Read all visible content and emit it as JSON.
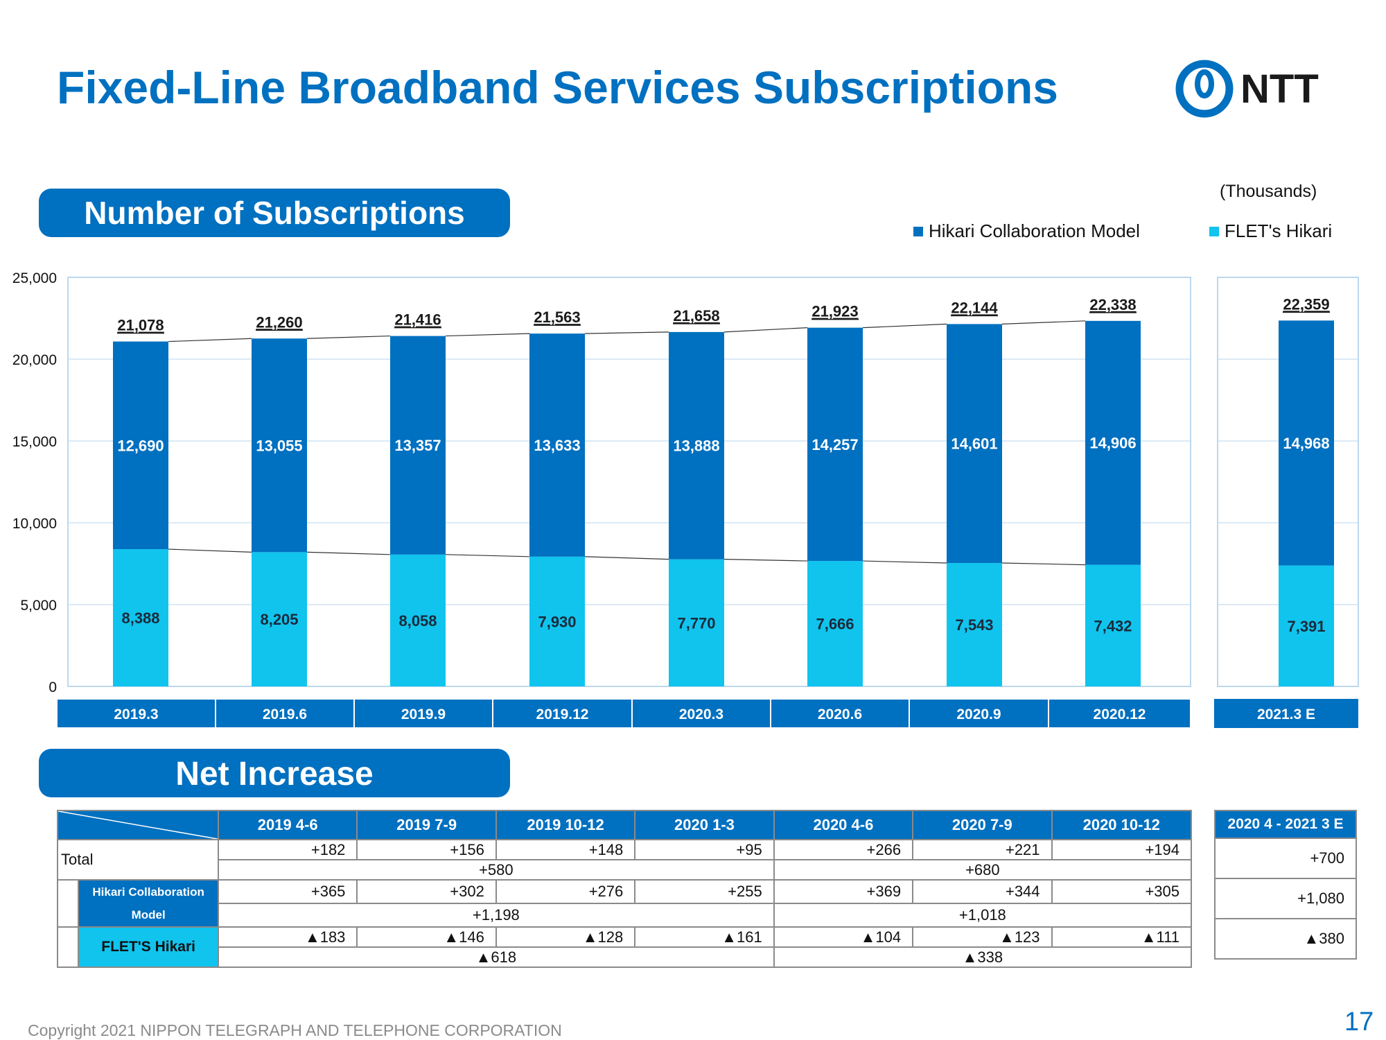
{
  "header": {
    "title": "Fixed-Line Broadband Services Subscriptions",
    "logo_text": "NTT",
    "colors": {
      "brand": "#0070c0",
      "dark_blue": "#0070c0",
      "light_blue": "#10c4ee"
    }
  },
  "section_subscriptions": {
    "title": "Number of Subscriptions",
    "unit": "(Thousands)"
  },
  "legend": {
    "hikari": "Hikari Collaboration Model",
    "flets": "FLET's Hikari"
  },
  "chart_data": {
    "type": "bar",
    "stacked": true,
    "categories": [
      "2019.3",
      "2019.6",
      "2019.9",
      "2019.12",
      "2020.3",
      "2020.6",
      "2020.9",
      "2020.12",
      "2021.3 E"
    ],
    "series": [
      {
        "name": "FLET's Hikari",
        "color": "#10c4ee",
        "values": [
          8388,
          8205,
          8058,
          7930,
          7770,
          7666,
          7543,
          7432,
          7391
        ],
        "labels": [
          "8,388",
          "8,205",
          "8,058",
          "7,930",
          "7,770",
          "7,666",
          "7,543",
          "7,432",
          "7,391"
        ]
      },
      {
        "name": "Hikari Collaboration Model",
        "color": "#0070c0",
        "values": [
          12690,
          13055,
          13357,
          13633,
          13888,
          14257,
          14601,
          14906,
          14968
        ],
        "labels": [
          "12,690",
          "13,055",
          "13,357",
          "13,633",
          "13,888",
          "14,257",
          "14,601",
          "14,906",
          "14,968"
        ]
      }
    ],
    "totals": [
      21078,
      21260,
      21416,
      21563,
      21658,
      21923,
      22144,
      22338,
      22359
    ],
    "total_labels": [
      "21,078",
      "21,260",
      "21,416",
      "21,563",
      "21,658",
      "21,923",
      "22,144",
      "22,338",
      "22,359"
    ],
    "ylim": [
      0,
      25000
    ],
    "yticks": [
      0,
      5000,
      10000,
      15000,
      20000,
      25000
    ],
    "ytick_labels": [
      "0",
      "5,000",
      "10,000",
      "15,000",
      "20,000",
      "25,000"
    ],
    "grid": true,
    "legend_position": "top-right"
  },
  "section_net_increase": {
    "title": "Net Increase",
    "columns": [
      "2019 4-6",
      "2019 7-9",
      "2019 10-12",
      "2020 1-3",
      "2020 4-6",
      "2020 7-9",
      "2020 10-12"
    ],
    "forecast_column": "2020 4 - 2021 3 E",
    "rows": [
      {
        "label": "Total",
        "quarters": [
          "+182",
          "+156",
          "+148",
          "+95",
          "+266",
          "+221",
          "+194"
        ],
        "fy": [
          "+580",
          "+680"
        ],
        "forecast": "+700"
      },
      {
        "label": "Hikari Collaboration Model",
        "quarters": [
          "+365",
          "+302",
          "+276",
          "+255",
          "+369",
          "+344",
          "+305"
        ],
        "fy": [
          "+1,198",
          "+1,018"
        ],
        "forecast": "+1,080"
      },
      {
        "label": "FLET'S Hikari",
        "quarters": [
          "▲183",
          "▲146",
          "▲128",
          "▲161",
          "▲104",
          "▲123",
          "▲111"
        ],
        "fy": [
          "▲618",
          "▲338"
        ],
        "forecast": "▲380"
      }
    ]
  },
  "footer": {
    "copyright": "Copyright 2021 NIPPON TELEGRAPH AND TELEPHONE CORPORATION",
    "page_number": "17"
  }
}
